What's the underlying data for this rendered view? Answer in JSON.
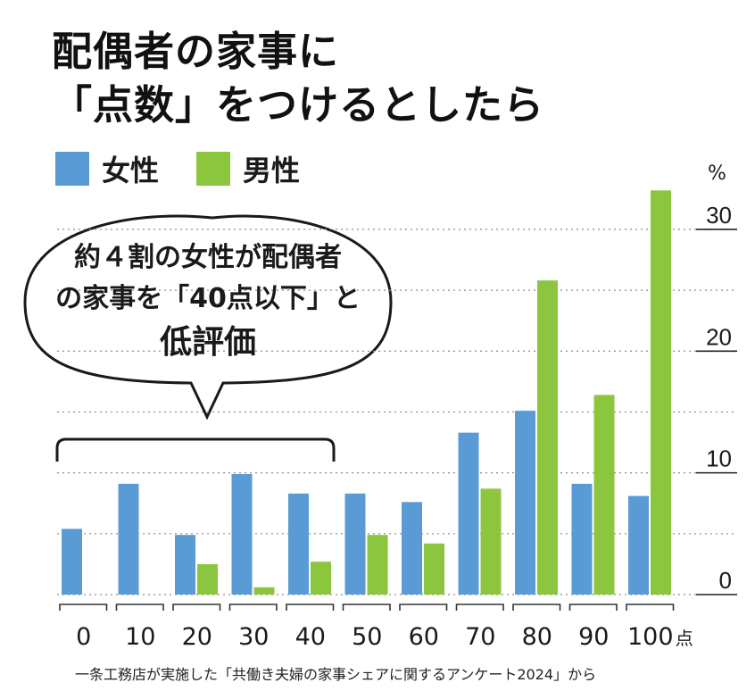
{
  "title": {
    "line1": "配偶者の家事に",
    "line2": "「点数」をつけるとしたら"
  },
  "legend": [
    {
      "label": "女性",
      "color": "#5b9bd5"
    },
    {
      "label": "男性",
      "color": "#8cc63f"
    }
  ],
  "callout": {
    "line1": "約４割の女性が配偶者",
    "line2": "の家事を「40点以下」と",
    "line3": "低評価"
  },
  "source": "一条工務店が実施した「共働き夫婦の家事シェアに関するアンケート2024」から",
  "chart_data": {
    "type": "bar",
    "categories": [
      "0",
      "10",
      "20",
      "30",
      "40",
      "50",
      "60",
      "70",
      "80",
      "90",
      "100"
    ],
    "x_unit": "点",
    "y_unit": "%",
    "ylim": [
      0,
      33
    ],
    "yticks": [
      0,
      10,
      20,
      30
    ],
    "grid": "dotted",
    "series": [
      {
        "name": "女性",
        "color": "#5b9bd5",
        "values": [
          5.4,
          9.1,
          4.9,
          9.9,
          8.3,
          8.3,
          7.6,
          13.3,
          15.1,
          9.1,
          8.1
        ]
      },
      {
        "name": "男性",
        "color": "#8cc63f",
        "values": [
          0.0,
          0.0,
          2.5,
          0.6,
          2.7,
          4.9,
          4.2,
          8.7,
          25.8,
          16.4,
          33.2
        ]
      }
    ]
  }
}
